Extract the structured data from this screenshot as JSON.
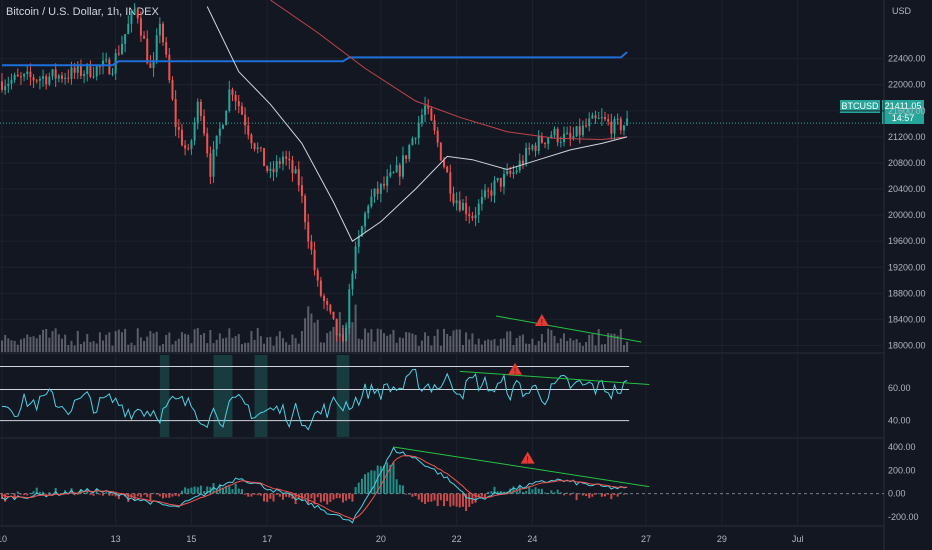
{
  "title": "Bitcoin / U.S. Dollar, 1h, INDEX",
  "currency": "USD",
  "ticker": "BTCUSD",
  "last_price": "21411.05",
  "countdown": "14:57",
  "colors": {
    "background": "#131722",
    "up": "#26a69a",
    "down": "#ef5350",
    "blue_line": "#1e6fd9",
    "ma_slow": "#c2454a",
    "ma_fast": "#d1d4dc",
    "trendline": "#26c242",
    "volume": "#7a7d86",
    "osc_line": "#4dd0e1",
    "warning": "#e53935"
  },
  "chart_data": [
    {
      "type": "candlestick",
      "name": "price",
      "y_ticks": [
        "22400.00",
        "22000.00",
        "21600.00",
        "21200.00",
        "20800.00",
        "20400.00",
        "20000.00",
        "19600.00",
        "19200.00",
        "18800.00",
        "18400.00",
        "18000.00"
      ],
      "ylim": [
        17900,
        23300
      ],
      "x_ticks": [
        "10",
        "13",
        "15",
        "17",
        "20",
        "22",
        "24",
        "27",
        "29",
        "Jul"
      ],
      "x_tick_hours": [
        0,
        72,
        120,
        168,
        240,
        288,
        336,
        408,
        456,
        504
      ],
      "x_range_hours": [
        0,
        560
      ],
      "last_value": 21411.05,
      "keypoints": [
        {
          "h": 0,
          "v": 22050
        },
        {
          "h": 40,
          "v": 22150
        },
        {
          "h": 70,
          "v": 22300
        },
        {
          "h": 85,
          "v": 23200
        },
        {
          "h": 95,
          "v": 22100
        },
        {
          "h": 100,
          "v": 23000
        },
        {
          "h": 110,
          "v": 21400
        },
        {
          "h": 118,
          "v": 20900
        },
        {
          "h": 125,
          "v": 21800
        },
        {
          "h": 132,
          "v": 20700
        },
        {
          "h": 145,
          "v": 22000
        },
        {
          "h": 158,
          "v": 21200
        },
        {
          "h": 170,
          "v": 20600
        },
        {
          "h": 178,
          "v": 20900
        },
        {
          "h": 188,
          "v": 20500
        },
        {
          "h": 200,
          "v": 18900
        },
        {
          "h": 210,
          "v": 18300
        },
        {
          "h": 216,
          "v": 17950
        },
        {
          "h": 222,
          "v": 19200
        },
        {
          "h": 232,
          "v": 20200
        },
        {
          "h": 240,
          "v": 20400
        },
        {
          "h": 252,
          "v": 20700
        },
        {
          "h": 262,
          "v": 21300
        },
        {
          "h": 268,
          "v": 21650
        },
        {
          "h": 276,
          "v": 21100
        },
        {
          "h": 286,
          "v": 20300
        },
        {
          "h": 298,
          "v": 20000
        },
        {
          "h": 312,
          "v": 20450
        },
        {
          "h": 324,
          "v": 20650
        },
        {
          "h": 336,
          "v": 21050
        },
        {
          "h": 348,
          "v": 21250
        },
        {
          "h": 360,
          "v": 21150
        },
        {
          "h": 372,
          "v": 21400
        },
        {
          "h": 380,
          "v": 21450
        },
        {
          "h": 388,
          "v": 21350
        },
        {
          "h": 396,
          "v": 21410
        }
      ],
      "overlays": [
        {
          "name": "blue_line",
          "points": [
            {
              "h": 0,
              "v": 22300
            },
            {
              "h": 70,
              "v": 22300
            },
            {
              "h": 74,
              "v": 22360
            },
            {
              "h": 216,
              "v": 22360
            },
            {
              "h": 220,
              "v": 22420
            },
            {
              "h": 392,
              "v": 22420
            },
            {
              "h": 396,
              "v": 22500
            }
          ]
        },
        {
          "name": "ma_slow",
          "points": [
            {
              "h": 170,
              "v": 23300
            },
            {
              "h": 200,
              "v": 22800
            },
            {
              "h": 230,
              "v": 22250
            },
            {
              "h": 262,
              "v": 21750
            },
            {
              "h": 290,
              "v": 21500
            },
            {
              "h": 320,
              "v": 21280
            },
            {
              "h": 350,
              "v": 21180
            },
            {
              "h": 380,
              "v": 21160
            },
            {
              "h": 396,
              "v": 21200
            }
          ]
        },
        {
          "name": "ma_fast",
          "points": [
            {
              "h": 130,
              "v": 23200
            },
            {
              "h": 150,
              "v": 22200
            },
            {
              "h": 170,
              "v": 21700
            },
            {
              "h": 190,
              "v": 21100
            },
            {
              "h": 210,
              "v": 20200
            },
            {
              "h": 222,
              "v": 19600
            },
            {
              "h": 240,
              "v": 19900
            },
            {
              "h": 262,
              "v": 20400
            },
            {
              "h": 282,
              "v": 20900
            },
            {
              "h": 298,
              "v": 20850
            },
            {
              "h": 320,
              "v": 20700
            },
            {
              "h": 340,
              "v": 20850
            },
            {
              "h": 360,
              "v": 21000
            },
            {
              "h": 380,
              "v": 21100
            },
            {
              "h": 396,
              "v": 21200
            }
          ]
        }
      ]
    },
    {
      "type": "bar",
      "name": "volume",
      "trendline": [
        {
          "h": 313,
          "rel": 0.18
        },
        {
          "h": 405,
          "rel": 0.05
        }
      ],
      "warning_at_hour": 342
    },
    {
      "type": "line",
      "name": "rsi",
      "y_ticks": [
        "60.00",
        "40.00"
      ],
      "ylim": [
        30,
        80
      ],
      "bands": [
        73,
        59,
        40
      ],
      "trendline": [
        {
          "h": 290,
          "v": 70
        },
        {
          "h": 410,
          "v": 62
        }
      ],
      "warning_at_hour": 325
    },
    {
      "type": "line",
      "name": "macd",
      "y_ticks": [
        "400.00",
        "200.00",
        "0.00",
        "-200.00"
      ],
      "ylim": [
        -260,
        460
      ],
      "trendline": [
        {
          "h": 248,
          "v": 400
        },
        {
          "h": 410,
          "v": 60
        }
      ],
      "warning_at_hour": 333
    }
  ]
}
